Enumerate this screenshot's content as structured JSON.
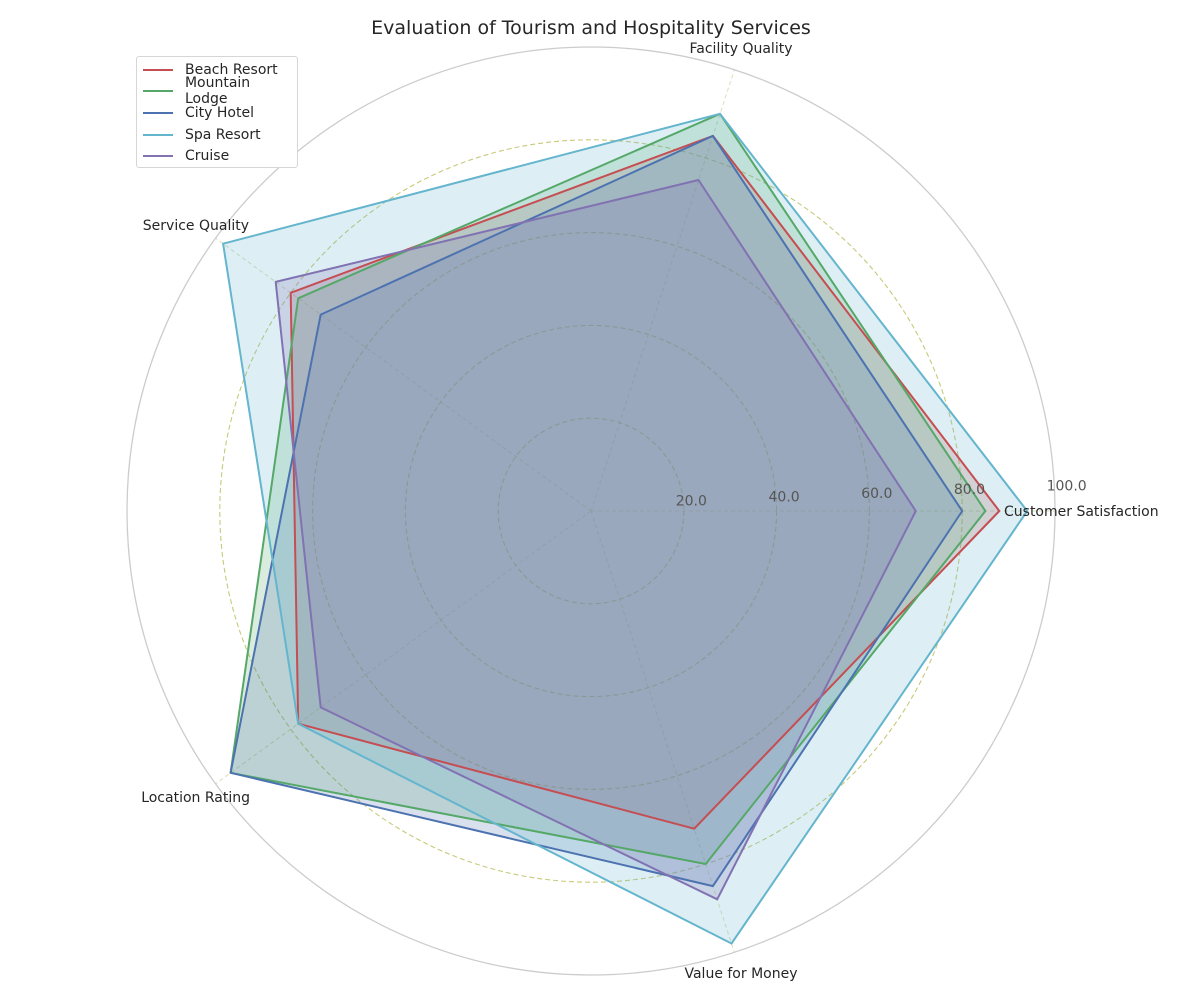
{
  "chart_data": {
    "type": "radar",
    "title": "Evaluation of Tourism and Hospitality Services",
    "categories": [
      "Customer Satisfaction",
      "Facility Quality",
      "Service Quality",
      "Location Rating",
      "Value for Money"
    ],
    "rlim": [
      0,
      100
    ],
    "radial_ticks": [
      20,
      40,
      60,
      80,
      100
    ],
    "radial_tick_labels": [
      "20.0",
      "40.0",
      "60.0",
      "80.0",
      "100.0"
    ],
    "grid": true,
    "legend_position": "top-left",
    "series": [
      {
        "name": "Beach Resort",
        "color": "#c44e52",
        "values": [
          88,
          85,
          80,
          78,
          72
        ]
      },
      {
        "name": "Mountain Lodge",
        "color": "#55a868",
        "values": [
          85,
          90,
          78,
          96,
          80
        ]
      },
      {
        "name": "City Hotel",
        "color": "#4c72b0",
        "values": [
          80,
          85,
          72,
          96,
          85
        ]
      },
      {
        "name": "Spa Resort",
        "color": "#64b5cd",
        "values": [
          94,
          90,
          98,
          78,
          98
        ]
      },
      {
        "name": "Cruise",
        "color": "#8172b2",
        "values": [
          70,
          75,
          84,
          72,
          88
        ]
      }
    ]
  }
}
